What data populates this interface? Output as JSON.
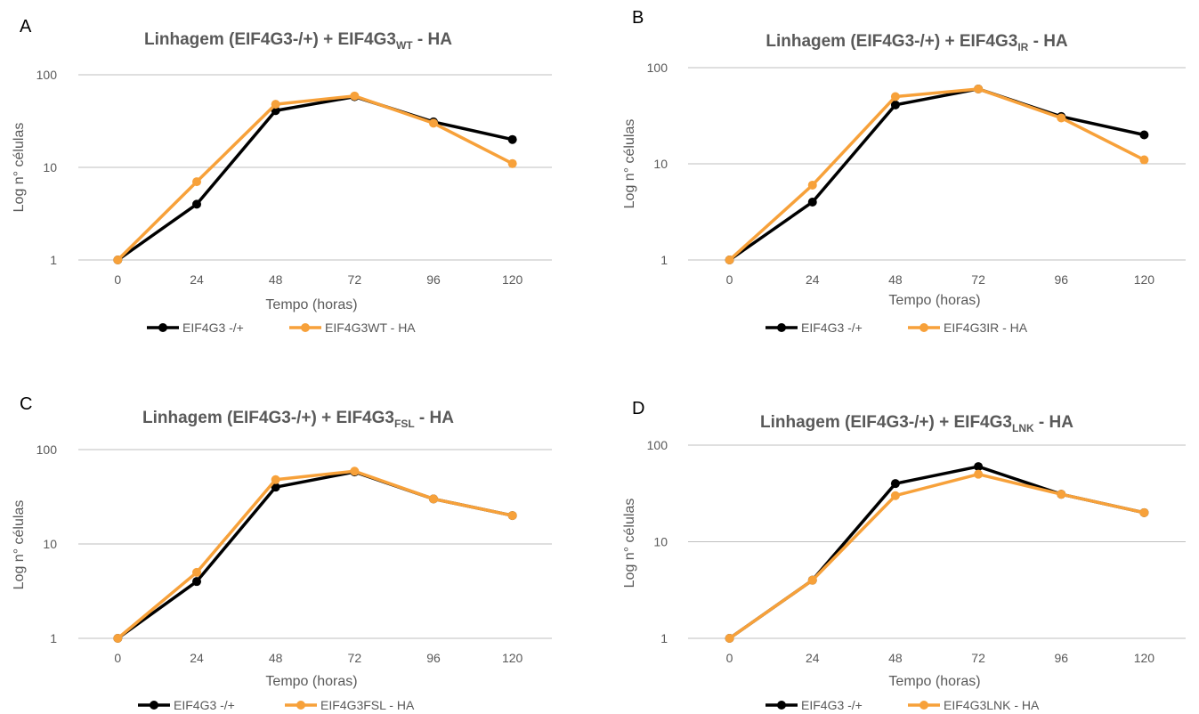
{
  "colors": {
    "series1": "#000000",
    "series2": "#F7A13A",
    "axis": "#BFBFBF",
    "text": "#595959"
  },
  "chart_data": [
    {
      "type": "line",
      "panel_letter": "A",
      "title_main": "Linhagem (EIF4G3-/+) + EIF4G3",
      "title_sub": "WT",
      "title_tail": " - HA",
      "xlabel": "Tempo (horas)",
      "ylabel": "Log n° células",
      "x": [
        0,
        24,
        48,
        72,
        96,
        120
      ],
      "y_ticks": [
        "1",
        "10",
        "100"
      ],
      "ylim": [
        1,
        100
      ],
      "yscale": "log",
      "legend_position": "bottom",
      "series": [
        {
          "name": "EIF4G3 -/+",
          "values": [
            1,
            4,
            41,
            58,
            31,
            20
          ]
        },
        {
          "name": "EIF4G3WT - HA",
          "values": [
            1,
            7,
            48,
            59,
            30,
            11
          ]
        }
      ]
    },
    {
      "type": "line",
      "panel_letter": "B",
      "title_main": "Linhagem (EIF4G3-/+) + EIF4G3",
      "title_sub": "IR",
      "title_tail": " - HA",
      "xlabel": "Tempo (horas)",
      "ylabel": "Log n° células",
      "x": [
        0,
        24,
        48,
        72,
        96,
        120
      ],
      "y_ticks": [
        "1",
        "10",
        "100"
      ],
      "ylim": [
        1,
        100
      ],
      "yscale": "log",
      "legend_position": "bottom",
      "series": [
        {
          "name": "EIF4G3 -/+",
          "values": [
            1,
            4,
            41,
            60,
            31,
            20
          ]
        },
        {
          "name": "EIF4G3IR - HA",
          "values": [
            1,
            6,
            50,
            60,
            30,
            11
          ]
        }
      ]
    },
    {
      "type": "line",
      "panel_letter": "C",
      "title_main": "Linhagem (EIF4G3-/+) + EIF4G3",
      "title_sub": "FSL",
      "title_tail": " - HA",
      "xlabel": "Tempo (horas)",
      "ylabel": "Log n° células",
      "x": [
        0,
        24,
        48,
        72,
        96,
        120
      ],
      "y_ticks": [
        "1",
        "10",
        "100"
      ],
      "ylim": [
        1,
        100
      ],
      "yscale": "log",
      "legend_position": "bottom",
      "series": [
        {
          "name": "EIF4G3 -/+",
          "values": [
            1,
            4,
            40,
            58,
            30,
            20
          ]
        },
        {
          "name": "EIF4G3FSL - HA",
          "values": [
            1,
            5,
            48,
            59,
            30,
            20
          ]
        }
      ]
    },
    {
      "type": "line",
      "panel_letter": "D",
      "title_main": "Linhagem (EIF4G3-/+) + EIF4G3",
      "title_sub": "LNK",
      "title_tail": " - HA",
      "xlabel": "Tempo (horas)",
      "ylabel": "Log n° células",
      "x": [
        0,
        24,
        48,
        72,
        96,
        120
      ],
      "y_ticks": [
        "1",
        "10",
        "100"
      ],
      "ylim": [
        1,
        100
      ],
      "yscale": "log",
      "legend_position": "bottom",
      "series": [
        {
          "name": "EIF4G3 -/+",
          "values": [
            1,
            4,
            40,
            60,
            31,
            20
          ]
        },
        {
          "name": "EIF4G3LNK - HA",
          "values": [
            1,
            4,
            30,
            50,
            31,
            20
          ]
        }
      ]
    }
  ]
}
